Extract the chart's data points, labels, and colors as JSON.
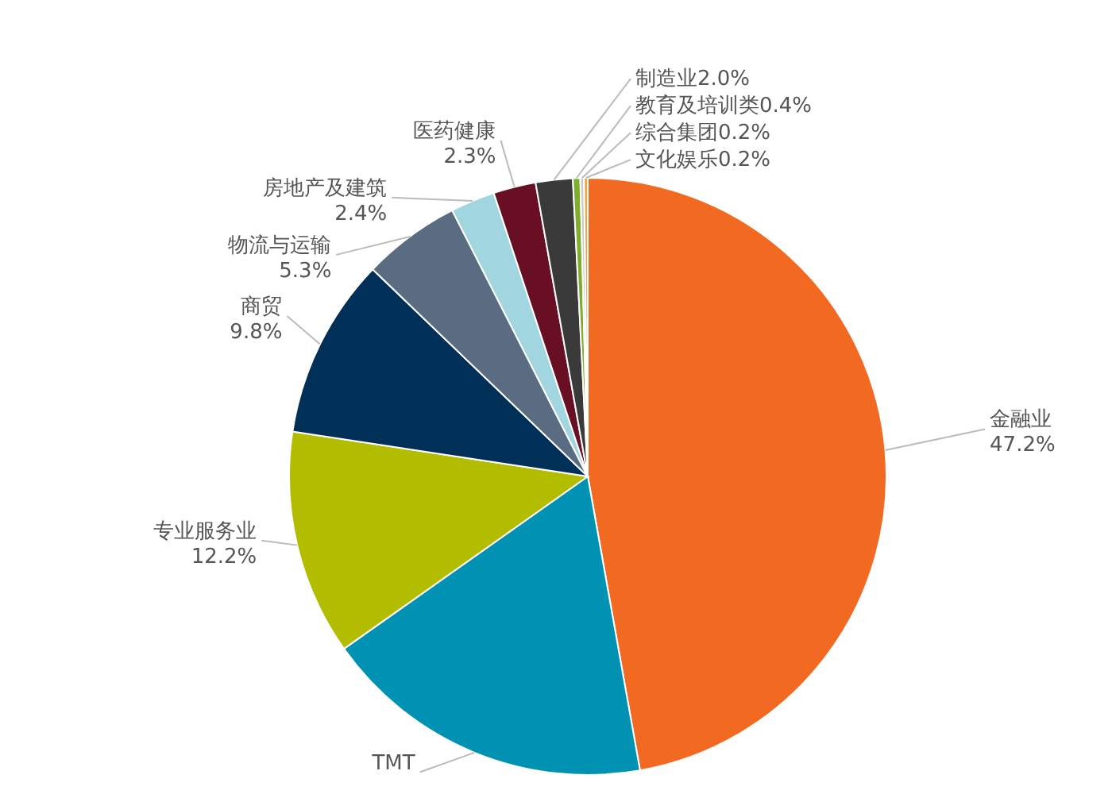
{
  "chart_data": {
    "type": "pie",
    "categories": [
      "金融业",
      "TMT",
      "专业服务业",
      "商贸",
      "物流与运输",
      "房地产及建筑",
      "医药健康",
      "制造业",
      "教育及培训类",
      "综合集团",
      "文化娱乐"
    ],
    "values": [
      47.2,
      18.0,
      12.2,
      9.8,
      5.3,
      2.4,
      2.3,
      2.0,
      0.4,
      0.2,
      0.2
    ],
    "value_labels": [
      "47.2%",
      null,
      "12.2%",
      "9.8%",
      "5.3%",
      "2.4%",
      "2.3%",
      "2.0%",
      "0.4%",
      "0.2%",
      "0.2%"
    ],
    "colors": [
      "#f26a21",
      "#0091b3",
      "#b3bd00",
      "#003057",
      "#5a6c82",
      "#a1d5df",
      "#680f23",
      "#3a3a3a",
      "#7fae2e",
      "#c9c9c9",
      "#f2a33a"
    ],
    "legend": false
  }
}
